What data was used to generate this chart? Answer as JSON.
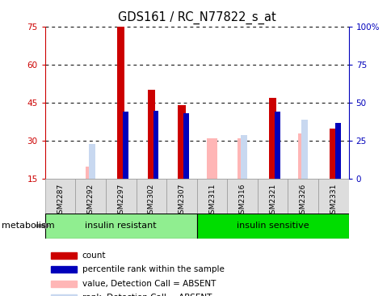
{
  "title": "GDS161 / RC_N77822_s_at",
  "samples": [
    "GSM2287",
    "GSM2292",
    "GSM2297",
    "GSM2302",
    "GSM2307",
    "GSM2311",
    "GSM2316",
    "GSM2321",
    "GSM2326",
    "GSM2331"
  ],
  "groups": [
    {
      "label": "insulin resistant",
      "color": "#90EE90",
      "n": 5
    },
    {
      "label": "insulin sensitive",
      "color": "#00DD00",
      "n": 5
    }
  ],
  "red_bars": [
    null,
    null,
    75,
    50,
    44,
    null,
    null,
    47,
    null,
    35
  ],
  "blue_bars": [
    null,
    null,
    44,
    45,
    43,
    null,
    null,
    44,
    null,
    37
  ],
  "pink_bars": [
    null,
    20,
    null,
    null,
    null,
    31,
    31,
    null,
    33,
    null
  ],
  "lightblue_bars": [
    null,
    23,
    null,
    null,
    null,
    null,
    29,
    null,
    39,
    null
  ],
  "ylim_left": [
    15,
    75
  ],
  "ylim_right": [
    0,
    100
  ],
  "yticks_left": [
    15,
    30,
    45,
    60,
    75
  ],
  "yticks_right": [
    0,
    25,
    50,
    75,
    100
  ],
  "ytick_labels_left": [
    "15",
    "30",
    "45",
    "60",
    "75"
  ],
  "ytick_labels_right": [
    "0",
    "25",
    "50",
    "75",
    "100%"
  ],
  "red_color": "#CC0000",
  "blue_color": "#0000BB",
  "pink_color": "#FFB6B6",
  "lightblue_color": "#C8D8F0",
  "legend_items": [
    {
      "color": "#CC0000",
      "label": "count"
    },
    {
      "color": "#0000BB",
      "label": "percentile rank within the sample"
    },
    {
      "color": "#FFB6B6",
      "label": "value, Detection Call = ABSENT"
    },
    {
      "color": "#C8D8F0",
      "label": "rank, Detection Call = ABSENT"
    }
  ],
  "group_label": "metabolism"
}
